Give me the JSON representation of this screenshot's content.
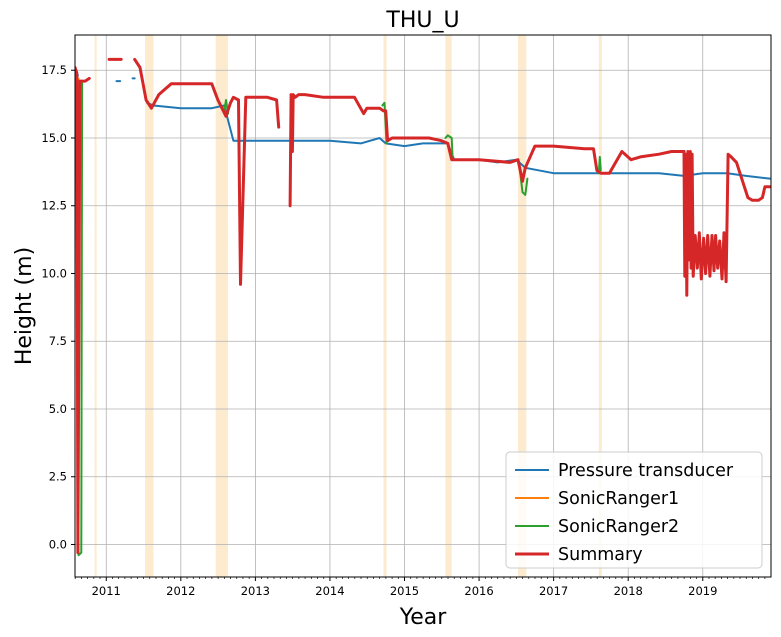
{
  "chart_data": {
    "type": "line",
    "title": "THU_U",
    "xlabel": "Year",
    "ylabel": "Height (m)",
    "xlim": [
      "2010-08-01",
      "2019-12-01"
    ],
    "ylim": [
      -1.2,
      18.8
    ],
    "x_ticks": [
      "2011",
      "2012",
      "2013",
      "2014",
      "2015",
      "2016",
      "2017",
      "2018",
      "2019"
    ],
    "y_ticks": [
      "0.0",
      "2.5",
      "5.0",
      "7.5",
      "10.0",
      "12.5",
      "15.0",
      "17.5"
    ],
    "grid": true,
    "legend": {
      "placement": "lower-right"
    },
    "highlight_color": "#fdebd0",
    "highlight_periods": [
      [
        "2010-11-05",
        "2010-11-15"
      ],
      [
        "2011-07-10",
        "2011-08-20"
      ],
      [
        "2012-06-20",
        "2012-08-20"
      ],
      [
        "2014-09-20",
        "2014-10-05"
      ],
      [
        "2015-07-20",
        "2015-08-20"
      ],
      [
        "2016-07-10",
        "2016-08-20"
      ],
      [
        "2017-08-10",
        "2017-08-25"
      ]
    ],
    "series": [
      {
        "name": "Pressure transducer",
        "color": "#1f77b4",
        "width": 2,
        "segments": [
          {
            "x": [
              "2010-08-01",
              "2010-08-15"
            ],
            "y": [
              17.6,
              17.3
            ]
          },
          {
            "x": [
              "2011-02-20",
              "2011-03-10"
            ],
            "y": [
              17.1,
              17.1
            ]
          },
          {
            "x": [
              "2011-05-10",
              "2011-05-20"
            ],
            "y": [
              17.2,
              17.2
            ]
          },
          {
            "x": [
              "2011-07-20",
              "2011-08-20",
              "2012-01-01",
              "2012-06-01",
              "2012-08-01",
              "2012-09-15",
              "2013-01-01",
              "2013-06-01",
              "2013-10-01",
              "2014-01-01",
              "2014-06-01",
              "2014-09-01",
              "2014-10-01",
              "2015-01-01",
              "2015-04-01",
              "2015-08-01",
              "2015-09-01",
              "2016-01-01",
              "2016-04-01",
              "2016-07-01",
              "2016-08-15",
              "2017-01-01",
              "2017-08-01",
              "2018-01-01",
              "2018-06-01",
              "2018-10-01",
              "2019-01-01",
              "2019-05-01",
              "2019-08-01",
              "2019-11-25"
            ],
            "y": [
              16.3,
              16.2,
              16.1,
              16.1,
              16.2,
              14.9,
              14.9,
              14.9,
              14.9,
              14.9,
              14.8,
              15.0,
              14.8,
              14.7,
              14.8,
              14.8,
              14.2,
              14.2,
              14.1,
              14.2,
              13.9,
              13.7,
              13.7,
              13.7,
              13.7,
              13.6,
              13.7,
              13.7,
              13.6,
              13.5
            ]
          }
        ]
      },
      {
        "name": "SonicRanger1",
        "color": "#ff7f0e",
        "width": 2,
        "segments": [
          {
            "x": [
              "2010-08-10",
              "2010-08-14",
              "2010-08-18"
            ],
            "y": [
              17.3,
              -0.2,
              17.2
            ]
          }
        ]
      },
      {
        "name": "SonicRanger2",
        "color": "#2ca02c",
        "width": 2,
        "segments": [
          {
            "x": [
              "2010-08-08",
              "2010-08-18",
              "2010-09-01",
              "2010-09-05"
            ],
            "y": [
              17.3,
              -0.4,
              -0.3,
              17.1
            ]
          },
          {
            "x": [
              "2012-08-01",
              "2012-08-10",
              "2012-08-20"
            ],
            "y": [
              16.0,
              16.4,
              15.9
            ]
          },
          {
            "x": [
              "2014-09-15",
              "2014-09-25",
              "2014-10-05"
            ],
            "y": [
              16.2,
              16.3,
              14.8
            ]
          },
          {
            "x": [
              "2015-07-20",
              "2015-08-01",
              "2015-08-20",
              "2015-08-25"
            ],
            "y": [
              15.0,
              15.1,
              15.0,
              14.2
            ]
          },
          {
            "x": [
              "2016-07-15",
              "2016-08-01",
              "2016-08-15",
              "2016-08-25"
            ],
            "y": [
              14.1,
              13.0,
              12.9,
              13.5
            ]
          },
          {
            "x": [
              "2017-08-10",
              "2017-08-15",
              "2017-08-20"
            ],
            "y": [
              13.7,
              14.3,
              13.8
            ]
          }
        ]
      },
      {
        "name": "Summary",
        "color": "#d62728",
        "width": 3,
        "segments": [
          {
            "x": [
              "2010-08-01",
              "2010-08-10",
              "2010-08-15",
              "2010-08-25",
              "2010-09-20",
              "2010-10-10"
            ],
            "y": [
              17.6,
              17.4,
              -0.3,
              17.1,
              17.1,
              17.2
            ]
          },
          {
            "x": [
              "2011-01-15",
              "2011-03-15"
            ],
            "y": [
              17.9,
              17.9
            ]
          },
          {
            "x": [
              "2011-05-20",
              "2011-06-15",
              "2011-07-15",
              "2011-08-10",
              "2011-09-15",
              "2011-10-15",
              "2011-11-15",
              "2012-01-01",
              "2012-06-01",
              "2012-07-01",
              "2012-08-10",
              "2012-09-01",
              "2012-09-15",
              "2012-10-10",
              "2012-10-20",
              "2012-11-15",
              "2013-03-01",
              "2013-04-15",
              "2013-04-25"
            ],
            "y": [
              17.9,
              17.6,
              16.4,
              16.1,
              16.6,
              16.8,
              17.0,
              17.0,
              17.0,
              16.4,
              15.8,
              16.3,
              16.5,
              16.4,
              9.6,
              16.5,
              16.5,
              16.4,
              15.4
            ]
          },
          {
            "x": [
              "2013-06-20",
              "2013-06-25",
              "2013-07-01",
              "2013-07-05",
              "2013-07-15",
              "2013-08-01",
              "2013-09-01",
              "2013-12-01",
              "2014-05-01",
              "2014-06-15",
              "2014-07-01",
              "2014-09-01",
              "2014-09-20",
              "2014-10-01",
              "2014-10-10",
              "2014-11-01",
              "2015-01-01",
              "2015-05-01",
              "2015-07-01",
              "2015-08-01",
              "2015-08-20",
              "2015-10-01",
              "2016-01-01",
              "2016-06-01",
              "2016-07-10",
              "2016-08-01",
              "2016-08-15",
              "2016-10-01",
              "2016-11-15",
              "2017-01-01",
              "2017-06-01",
              "2017-07-15",
              "2017-08-01",
              "2017-08-20",
              "2017-10-01",
              "2017-12-01",
              "2018-01-15",
              "2018-03-01",
              "2018-06-01",
              "2018-08-01",
              "2018-10-01"
            ],
            "y": [
              12.5,
              16.6,
              14.5,
              16.6,
              16.5,
              16.6,
              16.6,
              16.5,
              16.5,
              15.9,
              16.1,
              16.1,
              16.0,
              16.0,
              14.9,
              15.0,
              15.0,
              15.0,
              14.9,
              14.8,
              14.2,
              14.2,
              14.2,
              14.1,
              14.2,
              13.4,
              13.9,
              14.7,
              14.7,
              14.7,
              14.6,
              14.6,
              13.8,
              13.7,
              13.7,
              14.5,
              14.2,
              14.3,
              14.4,
              14.5,
              14.5
            ]
          },
          {
            "x": [
              "2018-10-01",
              "2018-10-05",
              "2018-10-10",
              "2018-10-15",
              "2018-10-20",
              "2018-10-25",
              "2018-11-01",
              "2018-11-05",
              "2018-11-10",
              "2018-11-15",
              "2018-11-25",
              "2018-12-05",
              "2018-12-15",
              "2018-12-25",
              "2019-01-05",
              "2019-01-15",
              "2019-01-25",
              "2019-02-05",
              "2019-02-15",
              "2019-02-25",
              "2019-03-05",
              "2019-03-15",
              "2019-03-25",
              "2019-04-05",
              "2019-04-15",
              "2019-04-25"
            ],
            "y": [
              14.5,
              9.9,
              14.4,
              9.2,
              14.5,
              10.5,
              14.5,
              10.2,
              14.4,
              9.9,
              11.4,
              10.2,
              11.5,
              9.8,
              11.3,
              10.0,
              11.4,
              9.9,
              11.4,
              10.1,
              11.4,
              10.2,
              11.2,
              9.8,
              11.5,
              9.7
            ]
          },
          {
            "x": [
              "2019-04-25",
              "2019-05-05",
              "2019-05-20",
              "2019-06-15",
              "2019-07-15",
              "2019-08-10",
              "2019-09-01",
              "2019-10-01",
              "2019-10-20",
              "2019-11-01",
              "2019-11-25"
            ],
            "y": [
              9.7,
              14.4,
              14.3,
              14.1,
              13.4,
              12.8,
              12.7,
              12.7,
              12.8,
              13.2,
              13.2
            ]
          }
        ]
      }
    ]
  }
}
